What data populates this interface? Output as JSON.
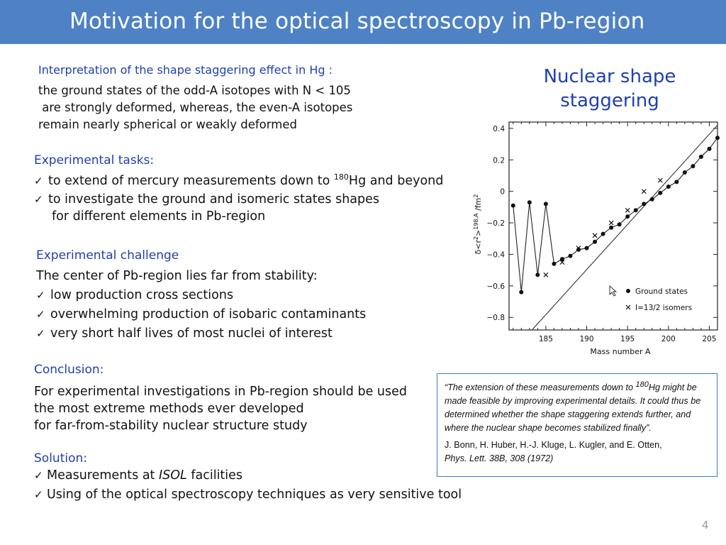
{
  "header": {
    "title": "Motivation for the optical spectroscopy in Pb-region"
  },
  "interpretation": {
    "heading": "Interpretation of the shape staggering effect in Hg :",
    "lines": [
      "the ground states of the odd-A isotopes with N < 105",
      " are strongly deformed, whereas, the even-A isotopes",
      "remain nearly spherical or weakly deformed"
    ]
  },
  "tasks": {
    "heading": "Experimental tasks:",
    "item1_pre": "to extend of mercury measurements down to ",
    "item1_sup": "180",
    "item1_post": "Hg and beyond",
    "item2_line1": "to investigate the ground and isomeric states shapes",
    "item2_line2": "for different elements in Pb-region"
  },
  "challenge": {
    "heading": "Experimental challenge",
    "intro": "The center of Pb-region lies far from stability:",
    "items": [
      "low production cross sections",
      "overwhelming production of isobaric contaminants",
      "very short half lives of most nuclei of interest"
    ]
  },
  "conclusion": {
    "heading": "Conclusion:",
    "lines": [
      "For experimental investigations in Pb-region should be used",
      "the most extreme methods ever developed",
      "for far-from-stability nuclear structure study"
    ]
  },
  "solution": {
    "heading": "Solution:",
    "item1_pre": "Measurements at ",
    "item1_em": "ISOL",
    "item1_post": " facilities",
    "item2": "Using of the optical spectroscopy techniques as very sensitive tool"
  },
  "right_title": {
    "line1": "Nuclear shape",
    "line2": "staggering"
  },
  "quote": {
    "open": "“The extension of these measurements down to ",
    "sup": "180",
    "text": "Hg might be made feasible by improving experimental details. It could thus be determined whether the shape staggering extends further, and where the nuclear shape becomes stabilized finally”.",
    "ref_authors": "J. Bonn, H. Huber, H.-J. Kluge, L. Kugler, and E. Otten,",
    "ref_journal": "Phys. Lett. 38B, 308 (1972)"
  },
  "page_number": "4",
  "icons": {
    "check": "check-icon"
  },
  "colors": {
    "title_bar": "#4e82c4",
    "heading_blue": "#1f3fb0",
    "quote_border": "#3a7bd5"
  },
  "chart_data": {
    "type": "scatter",
    "xlabel": "Mass number A",
    "ylabel_parts": [
      "δ<r",
      "2",
      ">",
      "198,A",
      " /fm",
      "2"
    ],
    "xlim": [
      180.5,
      206
    ],
    "ylim": [
      -0.88,
      0.44
    ],
    "xticks": [
      185,
      190,
      195,
      200,
      205
    ],
    "yticks": [
      0.4,
      0.2,
      0,
      -0.2,
      -0.4,
      -0.6,
      -0.8
    ],
    "ytick_labels": [
      "0.4",
      "0.2",
      "0",
      "−0.2",
      "−0.4",
      "−0.6",
      "−0.8"
    ],
    "legend_position": "bottom-right",
    "series": [
      {
        "name": "Ground states",
        "marker": "dot",
        "points": [
          [
            181,
            -0.09
          ],
          [
            182,
            -0.64
          ],
          [
            183,
            -0.07
          ],
          [
            184,
            -0.53
          ],
          [
            185,
            -0.08
          ],
          [
            186,
            -0.46
          ],
          [
            187,
            -0.43
          ],
          [
            188,
            -0.41
          ],
          [
            189,
            -0.37
          ],
          [
            190,
            -0.36
          ],
          [
            191,
            -0.32
          ],
          [
            192,
            -0.27
          ],
          [
            193,
            -0.23
          ],
          [
            194,
            -0.21
          ],
          [
            195,
            -0.16
          ],
          [
            196,
            -0.12
          ],
          [
            197,
            -0.08
          ],
          [
            198,
            -0.05
          ],
          [
            199,
            -0.01
          ],
          [
            200,
            0.03
          ],
          [
            201,
            0.06
          ],
          [
            202,
            0.12
          ],
          [
            203,
            0.16
          ],
          [
            204,
            0.22
          ],
          [
            205,
            0.27
          ],
          [
            206,
            0.34
          ]
        ]
      },
      {
        "name": "I=13/2 isomers",
        "marker": "cross",
        "points": [
          [
            185,
            -0.53
          ],
          [
            187,
            -0.45
          ],
          [
            189,
            -0.36
          ],
          [
            191,
            -0.28
          ],
          [
            193,
            -0.2
          ],
          [
            195,
            -0.12
          ],
          [
            197,
            0.0
          ],
          [
            199,
            0.07
          ]
        ]
      }
    ],
    "reference_line": {
      "from": [
        183.3,
        -0.88
      ],
      "to": [
        206,
        0.42
      ]
    }
  }
}
